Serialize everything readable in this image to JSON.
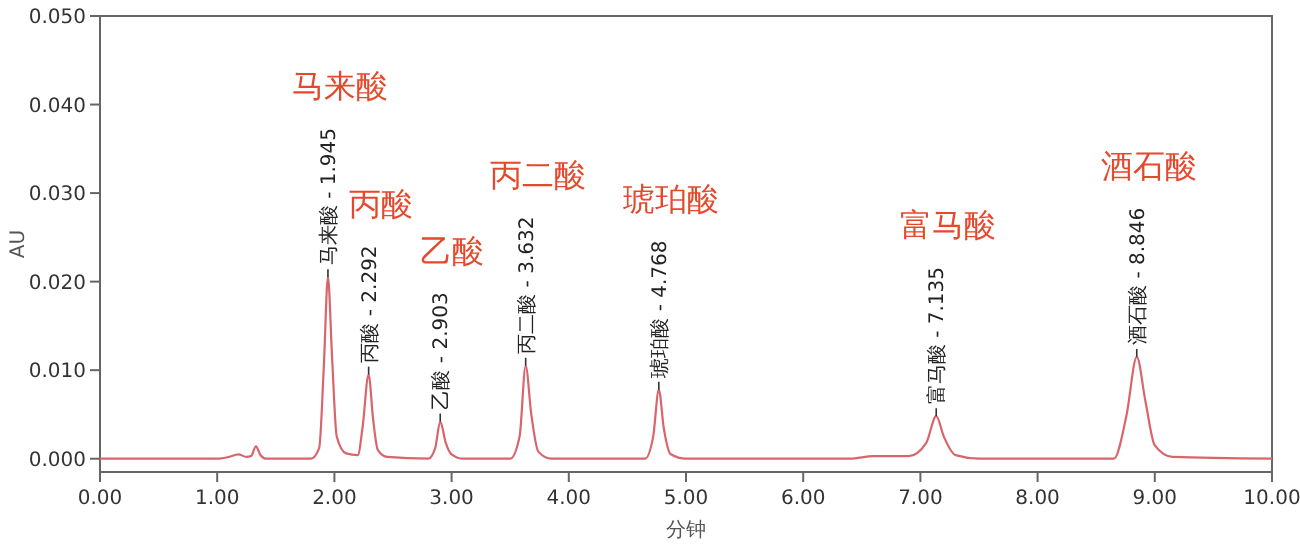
{
  "chart_data": {
    "type": "line",
    "xlabel": "分钟",
    "ylabel": "AU",
    "xlim": [
      0,
      10
    ],
    "ylim": [
      -0.0015,
      0.05
    ],
    "xticks": [
      {
        "value": 0,
        "label": "0.00"
      },
      {
        "value": 1,
        "label": "1.00"
      },
      {
        "value": 2,
        "label": "2.00"
      },
      {
        "value": 3,
        "label": "3.00"
      },
      {
        "value": 4,
        "label": "4.00"
      },
      {
        "value": 5,
        "label": "5.00"
      },
      {
        "value": 6,
        "label": "6.00"
      },
      {
        "value": 7,
        "label": "7.00"
      },
      {
        "value": 8,
        "label": "8.00"
      },
      {
        "value": 9,
        "label": "9.00"
      },
      {
        "value": 10,
        "label": "10.00"
      }
    ],
    "yticks": [
      {
        "value": 0,
        "label": "0.000"
      },
      {
        "value": 0.01,
        "label": "0.010"
      },
      {
        "value": 0.02,
        "label": "0.020"
      },
      {
        "value": 0.03,
        "label": "0.030"
      },
      {
        "value": 0.04,
        "label": "0.040"
      },
      {
        "value": 0.05,
        "label": "0.050"
      }
    ],
    "grid": false,
    "marker": "none",
    "line_style": "solid",
    "series": [
      {
        "color": "#d9646c",
        "x": [
          0,
          1.0,
          1.1,
          1.18,
          1.25,
          1.29,
          1.33,
          1.37,
          1.42,
          1.8,
          1.87,
          1.91,
          1.945,
          1.98,
          2.02,
          2.1,
          2.2,
          2.24,
          2.292,
          2.33,
          2.37,
          2.45,
          2.8,
          2.86,
          2.903,
          2.95,
          3.0,
          3.1,
          3.5,
          3.58,
          3.632,
          3.68,
          3.74,
          3.85,
          4.65,
          4.72,
          4.768,
          4.81,
          4.87,
          5.0,
          6.4,
          6.6,
          6.9,
          7.05,
          7.135,
          7.2,
          7.3,
          7.5,
          8.65,
          8.76,
          8.846,
          8.92,
          9.0,
          9.15,
          10
        ],
        "values": [
          0,
          0,
          0.0002,
          0.0005,
          0.0002,
          0.0003,
          0.0014,
          0.0004,
          0,
          0,
          0.0012,
          0.0105,
          0.0205,
          0.0115,
          0.0025,
          0.0006,
          0.0004,
          0.0035,
          0.0095,
          0.0045,
          0.001,
          0.0002,
          0,
          0.0012,
          0.0042,
          0.0018,
          0.0005,
          0,
          0,
          0.0025,
          0.0105,
          0.005,
          0.0008,
          0,
          0,
          0.0025,
          0.0078,
          0.0035,
          0.0005,
          0,
          0,
          0.0003,
          0.0003,
          0.0018,
          0.0048,
          0.0025,
          0.0004,
          0,
          0,
          0.005,
          0.0115,
          0.0065,
          0.0015,
          0.0002,
          0
        ]
      }
    ],
    "annotations": [
      {
        "text": "马来酸 - 1.945",
        "x": 1.945,
        "y": 0.0205
      },
      {
        "text": "丙酸 - 2.292",
        "x": 2.292,
        "y": 0.0095
      },
      {
        "text": "乙酸 - 2.903",
        "x": 2.903,
        "y": 0.0042
      },
      {
        "text": "丙二酸 - 3.632",
        "x": 3.632,
        "y": 0.0105
      },
      {
        "text": "琥珀酸 - 4.768",
        "x": 4.768,
        "y": 0.0078
      },
      {
        "text": "富马酸 - 7.135",
        "x": 7.135,
        "y": 0.0048
      },
      {
        "text": "酒石酸 - 8.846",
        "x": 8.846,
        "y": 0.0115
      },
      "马来酸",
      "丙酸",
      "乙酸",
      "丙二酸",
      "琥珀酸",
      "富马酸",
      "酒石酸"
    ]
  }
}
